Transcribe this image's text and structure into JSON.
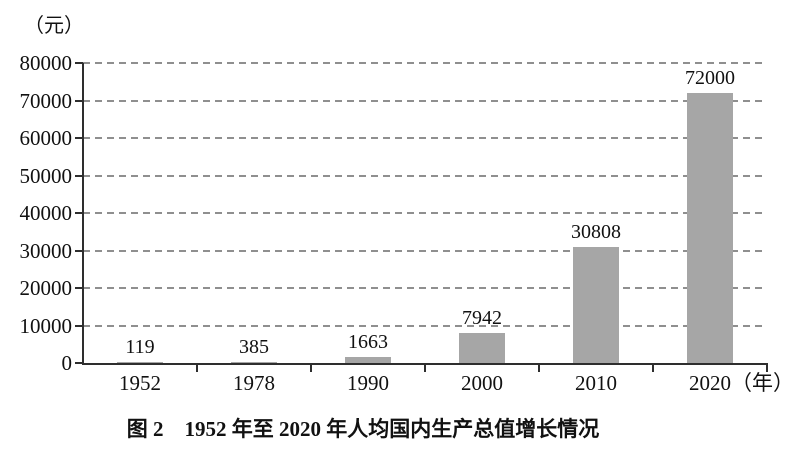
{
  "figure": {
    "unit_label": "（元）",
    "caption": "图 2　1952 年至 2020 年人均国内生产总值增长情况"
  },
  "chart_data": {
    "type": "bar",
    "title": "图 2　1952 年至 2020 年人均国内生产总值增长情况",
    "unit_label": "（元）",
    "categories": [
      "1952",
      "1978",
      "1990",
      "2000",
      "2010",
      "2020"
    ],
    "x_axis_suffix": "（年）",
    "values": [
      119,
      385,
      1663,
      7942,
      30808,
      72000
    ],
    "value_labels": [
      "119",
      "385",
      "1663",
      "7942",
      "30808",
      "72000"
    ],
    "ylim": [
      0,
      80000
    ],
    "ytick_step": 10000,
    "ytick_labels": [
      "0",
      "10000",
      "20000",
      "30000",
      "40000",
      "50000",
      "60000",
      "70000",
      "80000"
    ],
    "grid": "horizontal-dashed",
    "legend": "none",
    "colors": {
      "bar": "#a6a6a6",
      "grid": "#8f8f8f",
      "axis": "#2e2e2e",
      "text": "#111111"
    }
  }
}
